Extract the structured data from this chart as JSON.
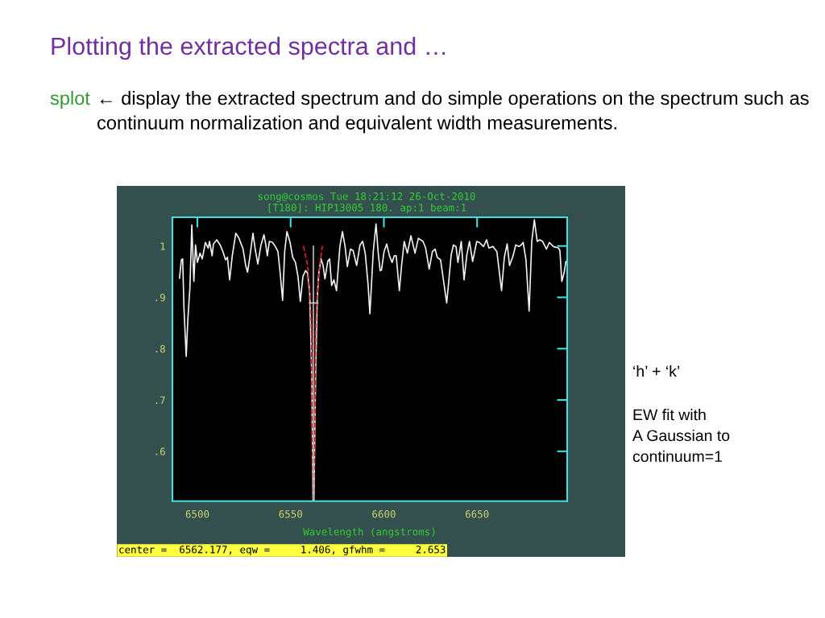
{
  "chart_data": {
    "type": "line",
    "title": "Plotting the extracted spectra and …",
    "subtitle": "splot ← display the extracted spectrum and do simple operations on the spectrum such as continuum normalization and equivalent width measurements.",
    "xlabel": "Wavelength (angstroms)",
    "annotations": [
      "song@cosmos Tue 18:21:12 26-Oct-2010",
      "[T180]: HIP13005 180. ap:1 beam:1",
      "center =  6562.177, eqw =     1.406, gfwhm =     2.653",
      "‘h’ + ‘k’",
      "EW fit with\nA Gaussian to\ncontinuum=1"
    ],
    "xlim": [
      6486.6,
      6698.3
    ],
    "ylim": [
      0.503,
      1.056
    ],
    "xticks": [
      6500,
      6550,
      6600,
      6650
    ],
    "yticks": [
      {
        "value": 0.6,
        "label": ".6"
      },
      {
        "value": 0.7,
        "label": ".7"
      },
      {
        "value": 0.8,
        "label": ".8"
      },
      {
        "value": 0.9,
        "label": ".9"
      },
      1
    ],
    "series": [
      {
        "color": "#f0f0f0",
        "x": [
          6490.4,
          6491.4,
          6492.1,
          6492.8,
          6494.0,
          6494.9,
          6496.0,
          6497.0,
          6498.1,
          6499.0,
          6500.0,
          6501.4,
          6502.6,
          6504.3,
          6505.8,
          6506.5,
          6507.9,
          6508.6,
          6510.4,
          6512.2,
          6513.7,
          6515.1,
          6516.1,
          6517.3,
          6518.7,
          6520.6,
          6522.3,
          6524.5,
          6525.9,
          6526.9,
          6528.1,
          6529.8,
          6531.0,
          6532.4,
          6534.1,
          6535.7,
          6536.7,
          6537.5,
          6538.6,
          6540.3,
          6541.8,
          6543.2,
          6544.4,
          6545.7,
          6546.8,
          6548.0,
          6549.7,
          6551.1,
          6552.6,
          6554.0,
          6555.2,
          6556.6,
          6558.0,
          6559.1,
          6560.2,
          6561.3,
          6562.0,
          6562.5,
          6563.4,
          6564.3,
          6565.1,
          6566.3,
          6567.4,
          6568.4,
          6569.9,
          6570.9,
          6572.0,
          6573.2,
          6574.6,
          6576.4,
          6577.8,
          6579.2,
          6580.4,
          6582.1,
          6583.5,
          6585.4,
          6587.2,
          6588.6,
          6590.0,
          6591.5,
          6592.5,
          6594.3,
          6595.8,
          6596.9,
          6598.0,
          6598.7,
          6600.1,
          6601.5,
          6603.0,
          6604.4,
          6605.6,
          6606.6,
          6608.3,
          6609.5,
          6610.9,
          6612.6,
          6614.5,
          6616.7,
          6618.5,
          6621.0,
          6622.4,
          6624.3,
          6626.0,
          6627.5,
          6628.6,
          6630.4,
          6633.7,
          6636.1,
          6637.3,
          6638.7,
          6639.7,
          6641.5,
          6643.0,
          6644.5,
          6645.9,
          6647.6,
          6649.8,
          6651.2,
          6653.4,
          6655.1,
          6656.3,
          6658.5,
          6660.6,
          6663.1,
          6664.6,
          6666.1,
          6667.4,
          6669.3,
          6670.7,
          6672.4,
          6673.6,
          6674.7,
          6676.2,
          6677.9,
          6679.3,
          6680.7,
          6682.2,
          6683.6,
          6685.1,
          6687.2,
          6688.7,
          6690.9,
          6693.7,
          6694.4,
          6695.4,
          6696.6,
          6697.6,
          6698.2
        ],
        "values": [
          0.937,
          0.973,
          0.975,
          0.879,
          0.785,
          0.858,
          0.92,
          1.041,
          0.931,
          1.002,
          0.968,
          0.986,
          0.975,
          1.007,
          0.996,
          1.009,
          0.981,
          1.004,
          1.012,
          1.002,
          0.989,
          0.973,
          0.978,
          0.934,
          0.981,
          1.025,
          1.015,
          0.994,
          0.962,
          0.949,
          0.978,
          1.025,
          0.994,
          0.965,
          1.002,
          1.022,
          1.002,
          0.981,
          1.009,
          1.007,
          0.999,
          0.989,
          0.947,
          0.894,
          0.989,
          1.028,
          1.007,
          0.978,
          0.968,
          0.939,
          0.892,
          0.941,
          0.952,
          0.947,
          0.91,
          0.75,
          0.505,
          0.505,
          0.75,
          0.9,
          0.947,
          0.975,
          0.962,
          0.936,
          0.97,
          0.975,
          0.923,
          0.934,
          0.913,
          0.999,
          1.028,
          0.999,
          0.96,
          0.994,
          0.991,
          0.962,
          1.002,
          1.009,
          0.986,
          0.926,
          0.868,
          0.989,
          1.043,
          0.989,
          0.952,
          0.953,
          0.989,
          1.004,
          0.981,
          0.968,
          0.981,
          0.981,
          0.913,
          0.962,
          1.009,
          0.986,
          1.02,
          0.986,
          1.015,
          1.009,
          0.996,
          0.955,
          0.989,
          0.994,
          0.978,
          0.973,
          0.889,
          0.983,
          1.002,
          0.999,
          0.968,
          1.009,
          0.934,
          0.983,
          1.009,
          0.97,
          1.009,
          1.007,
          0.999,
          1.012,
          0.996,
          0.999,
          0.989,
          0.913,
          0.978,
          1.004,
          0.962,
          0.981,
          1.002,
          0.999,
          1.002,
          1.007,
          0.973,
          0.873,
          1.009,
          1.051,
          1.009,
          1.012,
          1.009,
          0.994,
          1.007,
          0.999,
          0.996,
          0.991,
          0.931,
          0.947,
          0.97,
          0.97
        ]
      },
      {
        "color": "#dd2222",
        "line_style": "dashed",
        "x": [
          6556.9,
          6559.1,
          6560.5,
          6561.2,
          6561.5,
          6562.2,
          6563.0,
          6563.4,
          6564.1,
          6565.6,
          6567.0
        ],
        "values": [
          1.0,
          0.962,
          0.9,
          0.832,
          0.633,
          0.505,
          0.633,
          0.832,
          0.9,
          0.962,
          1.0
        ]
      },
      {
        "color": "#bbbbbb",
        "x": [
          6562.2,
          6562.2
        ],
        "values": [
          1.0,
          0.505
        ]
      },
      {
        "color": "#dddddd",
        "x": [
          6560.1,
          6564.6
        ],
        "values": [
          0.889,
          0.889
        ]
      }
    ]
  }
}
